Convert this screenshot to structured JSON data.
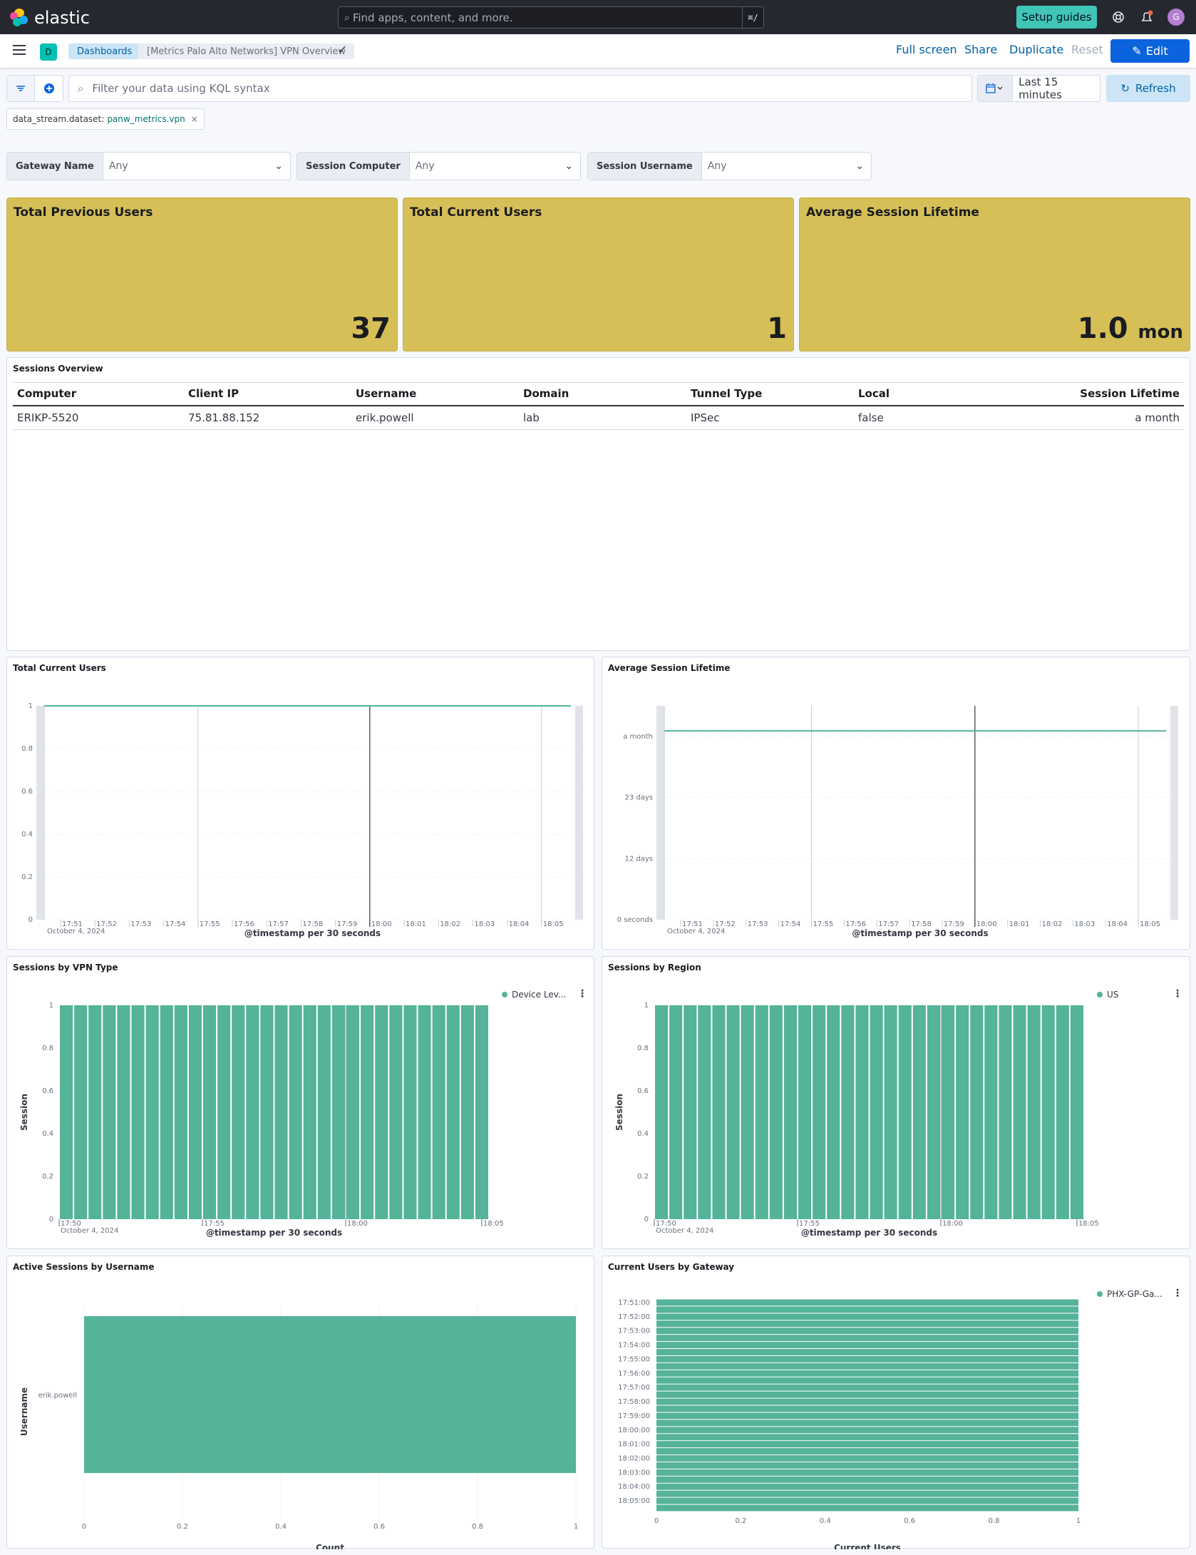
{
  "header": {
    "logo_text": "elastic",
    "search_placeholder": "Find apps, content, and more.",
    "search_shortcut": "⌘/",
    "setup_guides": "Setup guides",
    "avatar_initial": "G"
  },
  "subheader": {
    "space_badge": "D",
    "breadcrumbs": [
      "Dashboards",
      "[Metrics Palo Alto Networks] VPN Overview"
    ],
    "actions": {
      "full_screen": "Full screen",
      "share": "Share",
      "duplicate": "Duplicate",
      "reset": "Reset",
      "edit": "Edit"
    }
  },
  "query": {
    "kql_placeholder": "Filter your data using KQL syntax",
    "time_range": "Last 15 minutes",
    "refresh": "Refresh",
    "filter_pill": {
      "field": "data_stream.dataset:",
      "value": "panw_metrics.vpn"
    }
  },
  "controls": [
    {
      "label": "Gateway Name",
      "value": "Any"
    },
    {
      "label": "Session Computer",
      "value": "Any"
    },
    {
      "label": "Session Username",
      "value": "Any"
    }
  ],
  "metrics": [
    {
      "title": "Total Previous Users",
      "value": "37",
      "unit": ""
    },
    {
      "title": "Total Current Users",
      "value": "1",
      "unit": ""
    },
    {
      "title": "Average Session Lifetime",
      "value": "1.0",
      "unit": "mon"
    }
  ],
  "sessions_overview": {
    "title": "Sessions Overview",
    "columns": [
      "Computer",
      "Client IP",
      "Username",
      "Domain",
      "Tunnel Type",
      "Local",
      "Session Lifetime"
    ],
    "rows": [
      [
        "ERIKP-5520",
        "75.81.88.152",
        "erik.powell",
        "lab",
        "IPSec",
        "false",
        "a month"
      ]
    ]
  },
  "panels": {
    "total_current_users": {
      "title": "Total Current Users",
      "xlabel": "@timestamp per 30 seconds",
      "date": "October 4, 2024"
    },
    "avg_session_lifetime": {
      "title": "Average Session Lifetime",
      "xlabel": "@timestamp per 30 seconds",
      "date": "October 4, 2024"
    },
    "sessions_by_vpn": {
      "title": "Sessions by VPN Type",
      "xlabel": "@timestamp per 30 seconds",
      "ylabel": "Session",
      "date": "October 4, 2024",
      "legend": "Device Lev..."
    },
    "sessions_by_region": {
      "title": "Sessions by Region",
      "xlabel": "@timestamp per 30 seconds",
      "ylabel": "Session",
      "date": "October 4, 2024",
      "legend": "US"
    },
    "active_by_username": {
      "title": "Active Sessions by Username",
      "xlabel": "Count",
      "ylabel": "Username"
    },
    "users_by_gateway": {
      "title": "Current Users by Gateway",
      "xlabel": "Current Users",
      "legend": "PHX-GP-Ga..."
    }
  },
  "chart_data": [
    {
      "type": "line",
      "title": "Total Current Users",
      "xlabel": "@timestamp per 30 seconds",
      "x_ticks": [
        "17:51",
        "17:52",
        "17:53",
        "17:54",
        "17:55",
        "17:56",
        "17:57",
        "17:58",
        "17:59",
        "18:00",
        "18:01",
        "18:02",
        "18:03",
        "18:04",
        "18:05"
      ],
      "y_ticks": [
        "0",
        "0.2",
        "0.4",
        "0.6",
        "0.8",
        "1"
      ],
      "ylim": [
        0,
        1
      ],
      "series": [
        {
          "values": [
            1,
            1
          ]
        }
      ]
    },
    {
      "type": "line",
      "title": "Average Session Lifetime",
      "xlabel": "@timestamp per 30 seconds",
      "x_ticks": [
        "17:51",
        "17:52",
        "17:53",
        "17:54",
        "17:55",
        "17:56",
        "17:57",
        "17:58",
        "17:59",
        "18:00",
        "18:01",
        "18:02",
        "18:03",
        "18:04",
        "18:05"
      ],
      "y_ticks": [
        "0 seconds",
        "12 days",
        "23 days",
        "a month"
      ],
      "ylim": [
        0,
        35
      ],
      "series": [
        {
          "values": [
            30.9,
            30.9
          ]
        }
      ]
    },
    {
      "type": "bar",
      "title": "Sessions by VPN Type",
      "xlabel": "@timestamp per 30 seconds",
      "ylabel": "Session",
      "x_ticks": [
        "17:50",
        "17:55",
        "18:00",
        "18:05"
      ],
      "y_ticks": [
        "0",
        "0.2",
        "0.4",
        "0.6",
        "0.8",
        "1"
      ],
      "ylim": [
        0,
        1
      ],
      "bar_count": 30,
      "series": [
        {
          "name": "Device Lev...",
          "value": 1
        }
      ]
    },
    {
      "type": "bar",
      "title": "Sessions by Region",
      "xlabel": "@timestamp per 30 seconds",
      "ylabel": "Session",
      "x_ticks": [
        "17:50",
        "17:55",
        "18:00",
        "18:05"
      ],
      "y_ticks": [
        "0",
        "0.2",
        "0.4",
        "0.6",
        "0.8",
        "1"
      ],
      "ylim": [
        0,
        1
      ],
      "bar_count": 30,
      "series": [
        {
          "name": "US",
          "value": 1
        }
      ]
    },
    {
      "type": "bar",
      "title": "Active Sessions by Username",
      "orientation": "horizontal",
      "xlabel": "Count",
      "ylabel": "Username",
      "categories": [
        "erik.powell"
      ],
      "values": [
        1
      ],
      "x_ticks": [
        "0",
        "0.2",
        "0.4",
        "0.6",
        "0.8",
        "1"
      ],
      "xlim": [
        0,
        1
      ]
    },
    {
      "type": "bar",
      "title": "Current Users by Gateway",
      "orientation": "horizontal",
      "xlabel": "Current Users",
      "categories": [
        "17:51:00",
        "17:52:00",
        "17:53:00",
        "17:54:00",
        "17:55:00",
        "17:56:00",
        "17:57:00",
        "17:58:00",
        "17:59:00",
        "18:00:00",
        "18:01:00",
        "18:02:00",
        "18:03:00",
        "18:04:00",
        "18:05:00"
      ],
      "values": [
        1,
        1,
        1,
        1,
        1,
        1,
        1,
        1,
        1,
        1,
        1,
        1,
        1,
        1,
        1
      ],
      "x_ticks": [
        "0",
        "0.2",
        "0.4",
        "0.6",
        "0.8",
        "1"
      ],
      "xlim": [
        0,
        1
      ],
      "series": [
        {
          "name": "PHX-GP-Ga..."
        }
      ]
    }
  ],
  "colors": {
    "bar": "#54b399",
    "metric_bg": "#d6bf57",
    "header_bg": "#25282f",
    "primary": "#0b64dd"
  }
}
